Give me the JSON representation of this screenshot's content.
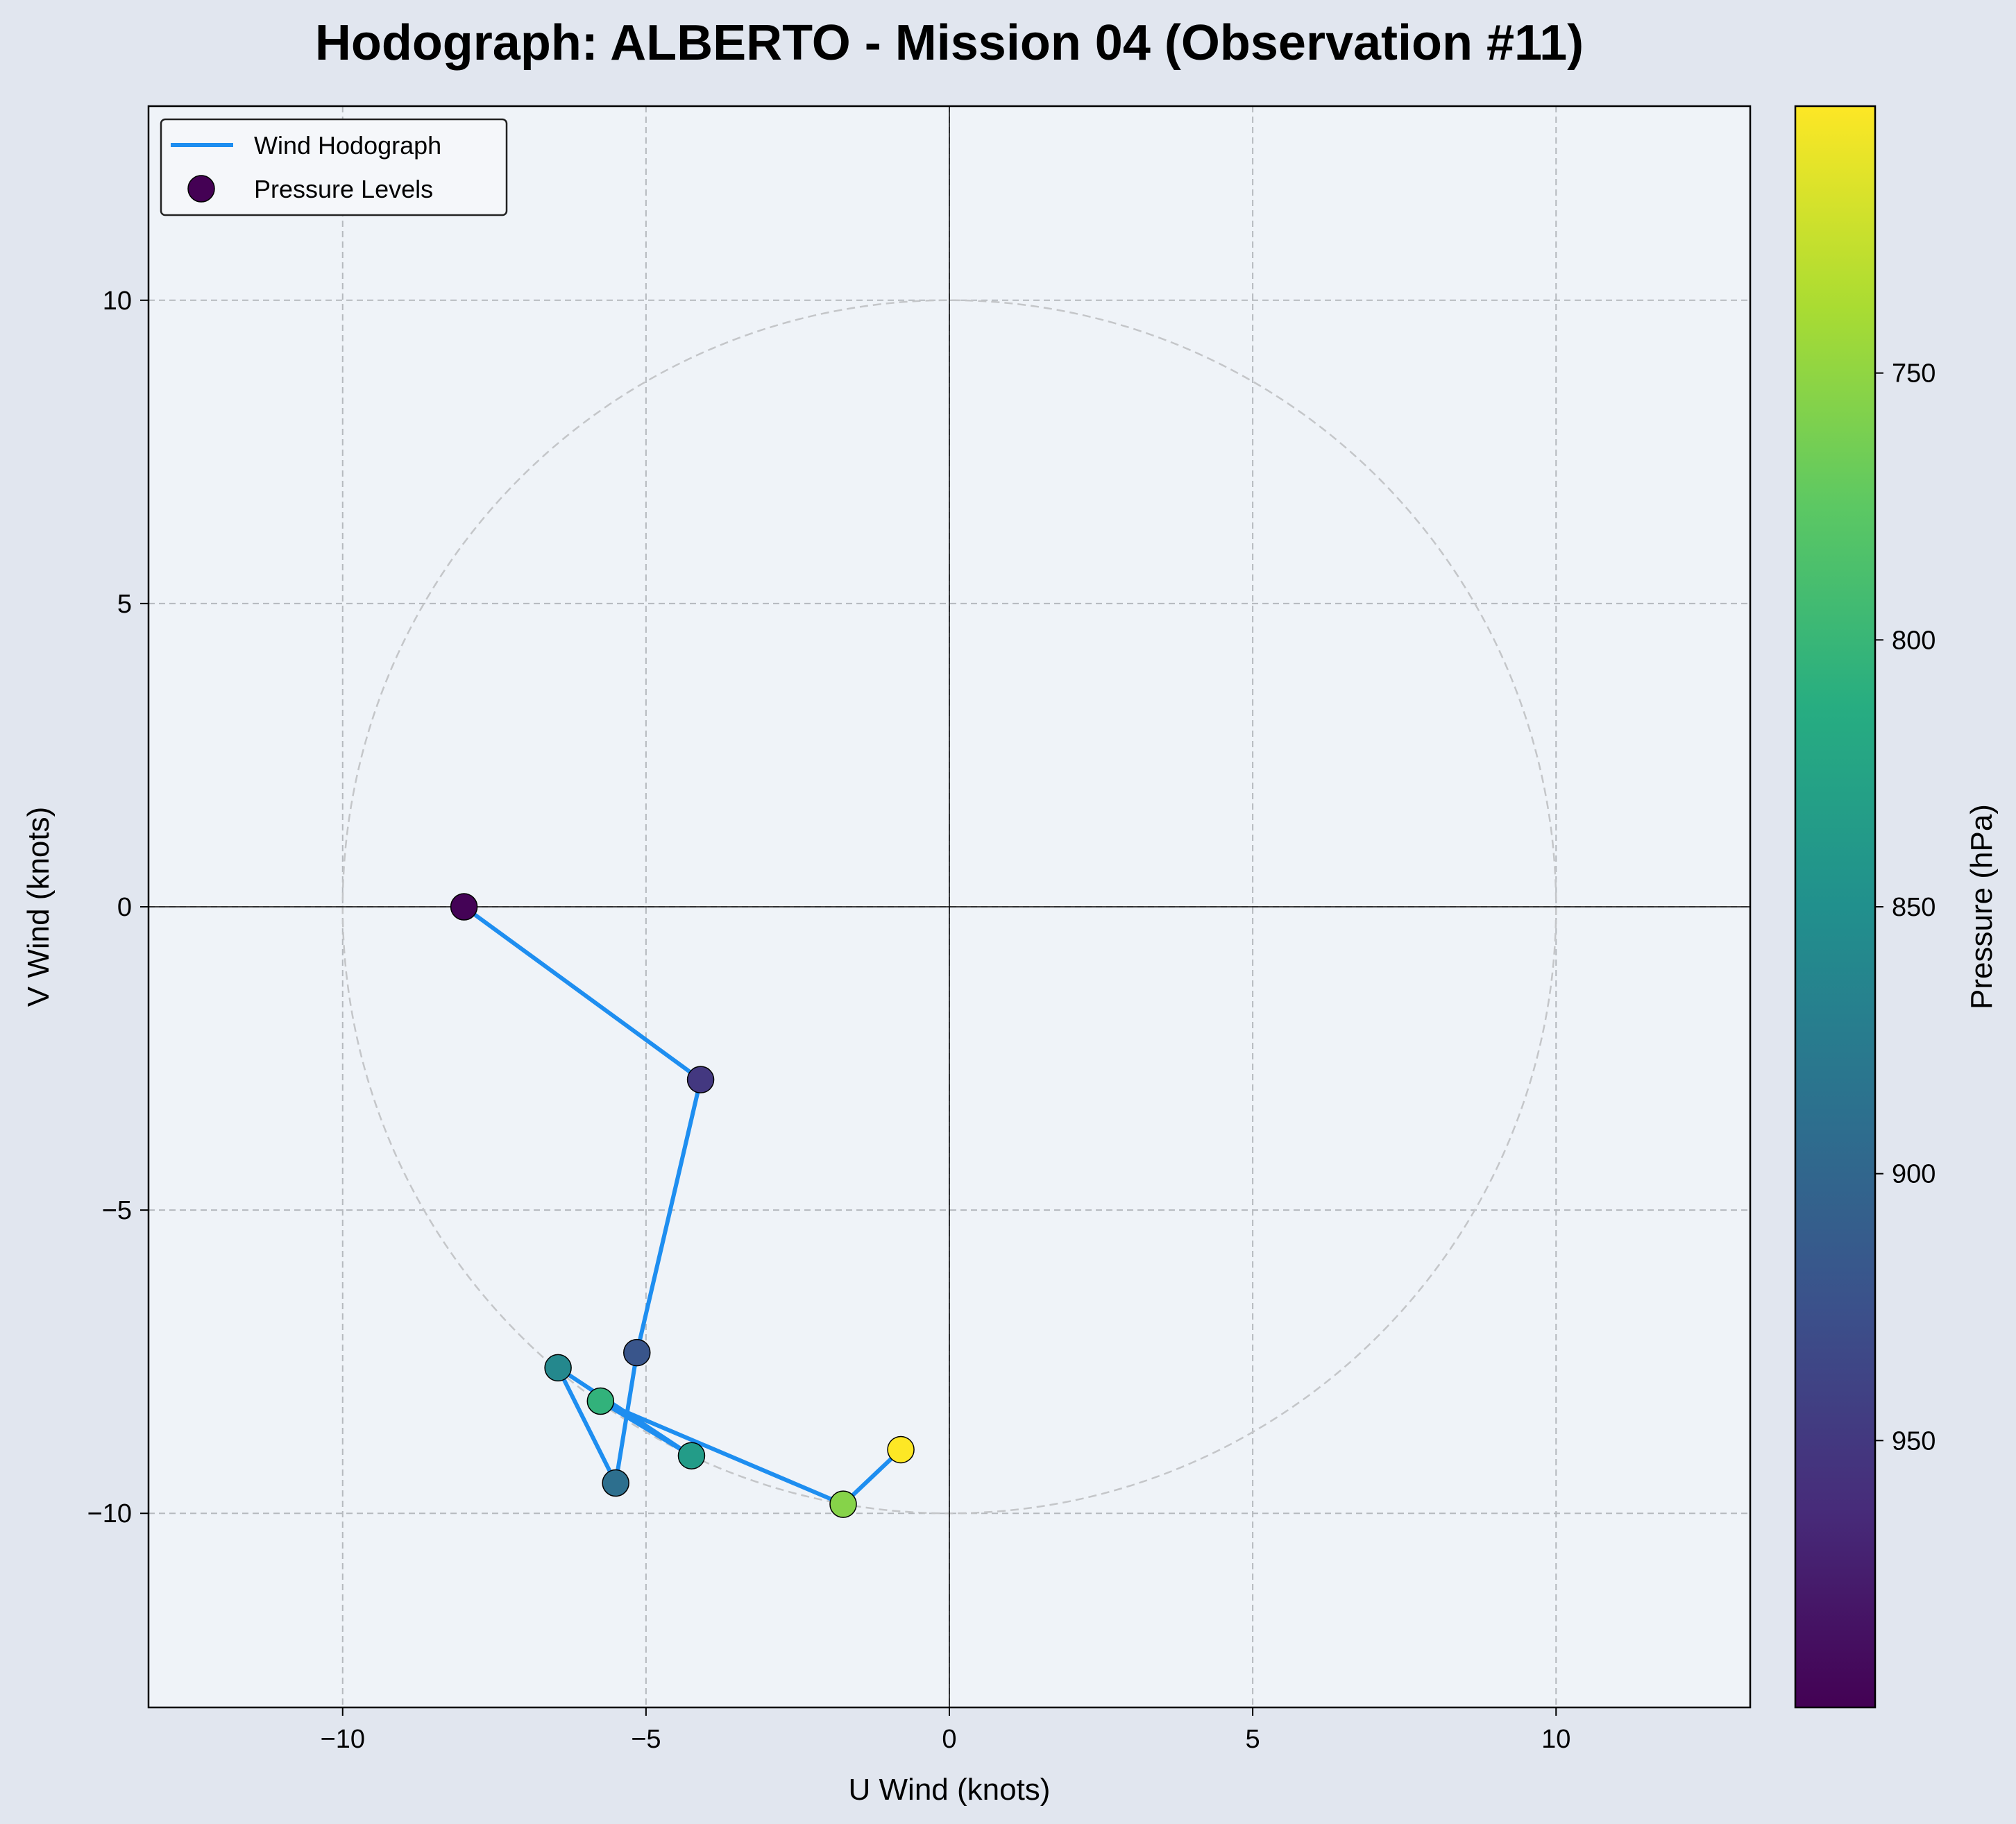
{
  "chart_data": {
    "type": "scatter",
    "title": "Hodograph: ALBERTO - Mission 04 (Observation #11)",
    "xlabel": "U Wind (knots)",
    "ylabel": "V Wind (knots)",
    "xlim": [
      -13.2,
      13.2
    ],
    "ylim": [
      -13.2,
      13.2
    ],
    "xticks": [
      -10,
      -5,
      0,
      5,
      10
    ],
    "yticks": [
      -10,
      -5,
      0,
      5,
      10
    ],
    "xtick_labels": [
      "−10",
      "−5",
      "0",
      "5",
      "10"
    ],
    "ytick_labels": [
      "−10",
      "−5",
      "0",
      "5",
      "10"
    ],
    "grid": true,
    "reference_circle_radius": 10,
    "legend_position": "upper-left",
    "series": [
      {
        "name": "Wind Hodograph",
        "type": "line",
        "color": "#1e8ef0",
        "points": [
          {
            "u": -8.0,
            "v": 0.0
          },
          {
            "u": -4.1,
            "v": -2.85
          },
          {
            "u": -5.15,
            "v": -7.35
          },
          {
            "u": -5.5,
            "v": -9.5
          },
          {
            "u": -6.45,
            "v": -7.6
          },
          {
            "u": -4.25,
            "v": -9.05
          },
          {
            "u": -5.75,
            "v": -8.15
          },
          {
            "u": -1.75,
            "v": -9.85
          },
          {
            "u": -0.8,
            "v": -8.95
          }
        ]
      },
      {
        "name": "Pressure Levels",
        "type": "scatter",
        "points": [
          {
            "u": -8.0,
            "v": 0.0,
            "pressure": 998
          },
          {
            "u": -4.1,
            "v": -2.85,
            "pressure": 950
          },
          {
            "u": -5.15,
            "v": -7.35,
            "pressure": 920
          },
          {
            "u": -5.5,
            "v": -9.5,
            "pressure": 890
          },
          {
            "u": -6.45,
            "v": -7.6,
            "pressure": 860
          },
          {
            "u": -4.25,
            "v": -9.05,
            "pressure": 835
          },
          {
            "u": -5.75,
            "v": -8.15,
            "pressure": 805
          },
          {
            "u": -1.75,
            "v": -9.85,
            "pressure": 755
          },
          {
            "u": -0.8,
            "v": -8.95,
            "pressure": 700
          }
        ]
      }
    ],
    "colorbar": {
      "label": "Pressure (hPa)",
      "colormap": "viridis",
      "reversed": true,
      "range": [
        700,
        1000
      ],
      "ticks": [
        750,
        800,
        850,
        900,
        950
      ],
      "tick_labels": [
        "750",
        "800",
        "850",
        "900",
        "950"
      ]
    }
  },
  "colors": {
    "figure_background": "#e1e6ef",
    "plot_background": "#eff3f8",
    "line": "#1e8ef0",
    "grid": "#b5b9be",
    "reference_circle": "#c4c6c9"
  }
}
